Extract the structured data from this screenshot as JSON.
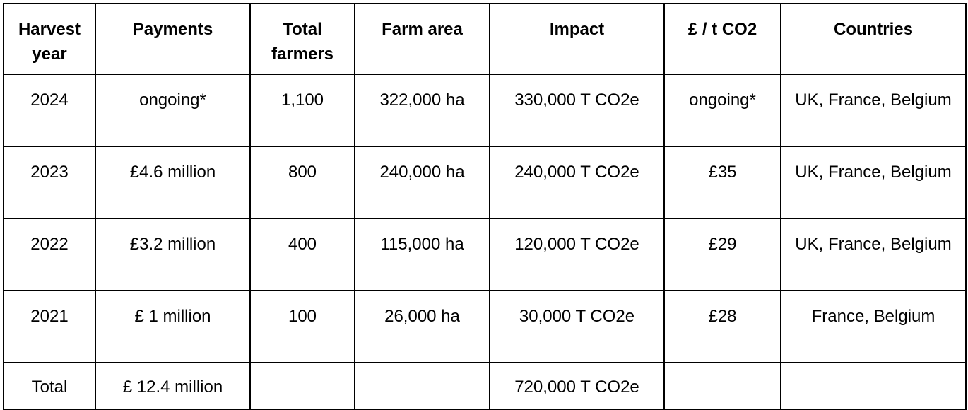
{
  "table": {
    "headers": [
      "Harvest year",
      "Payments",
      "Total farmers",
      "Farm area",
      "Impact",
      "£ / t CO2",
      "Countries"
    ],
    "rows": [
      [
        "2024",
        "ongoing*",
        "1,100",
        "322,000 ha",
        "330,000 T CO2e",
        "ongoing*",
        "UK, France, Belgium"
      ],
      [
        "2023",
        "£4.6 million",
        "800",
        "240,000 ha",
        "240,000 T CO2e",
        "£35",
        "UK, France, Belgium"
      ],
      [
        "2022",
        "£3.2 million",
        "400",
        "115,000 ha",
        "120,000 T CO2e",
        "£29",
        "UK, France, Belgium"
      ],
      [
        "2021",
        "£ 1 million",
        "100",
        "26,000 ha",
        "30,000 T CO2e",
        "£28",
        "France, Belgium"
      ],
      [
        "Total",
        "£ 12.4 million",
        "",
        "",
        "720,000 T CO2e",
        "",
        ""
      ]
    ]
  }
}
